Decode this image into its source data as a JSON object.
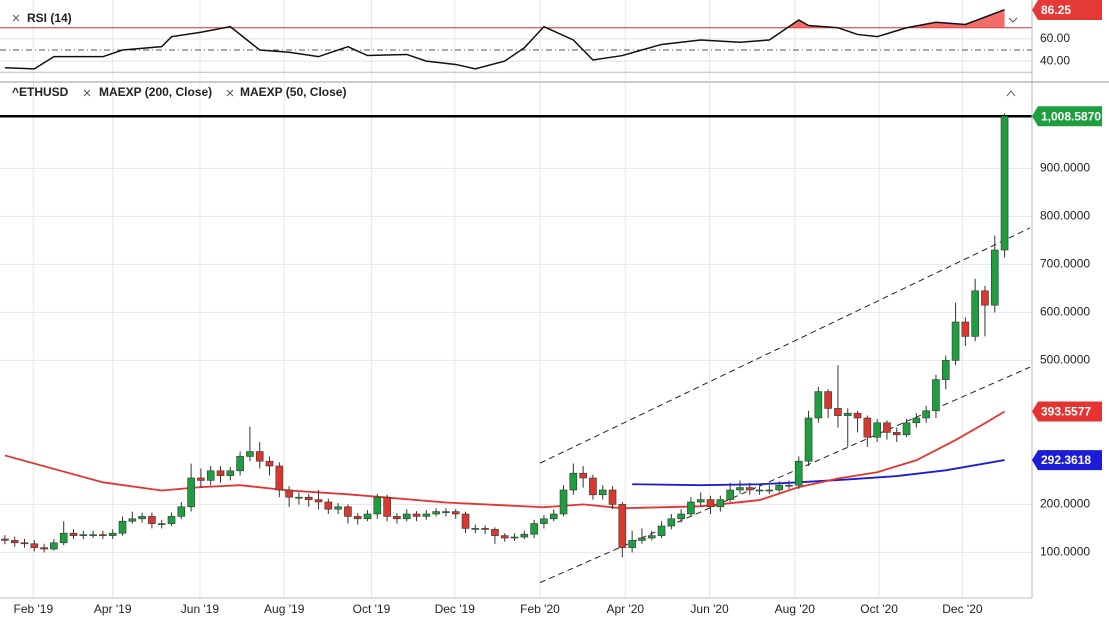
{
  "chart_data": [
    {
      "type": "line",
      "name": "RSI (14)",
      "color": "#111111",
      "label_color": "#e53935",
      "x": [
        0,
        3,
        5,
        10,
        12,
        16,
        17,
        20,
        23,
        26,
        29,
        32,
        35,
        37,
        41,
        43,
        46,
        48,
        51,
        53,
        55,
        58,
        60,
        63,
        67,
        71,
        75,
        78,
        81,
        82,
        85,
        87,
        89,
        92,
        95,
        98,
        102
      ],
      "values": [
        34,
        33,
        44,
        44,
        50,
        53,
        62,
        66,
        71,
        50,
        48,
        44,
        53,
        45,
        46,
        40,
        37,
        33,
        40,
        52,
        71,
        59,
        41,
        45,
        55,
        59,
        57,
        59,
        77,
        72,
        70,
        64,
        62,
        70,
        75,
        73,
        86.25
      ],
      "xlim": [
        -0.5,
        104.8
      ],
      "ylim": [
        23,
        95
      ],
      "yticks": [
        {
          "value": 40,
          "label": "40.00"
        },
        {
          "value": 60,
          "label": "60.00"
        }
      ],
      "levels": [
        {
          "value": 70,
          "color": "#d32f2f",
          "style": "solid",
          "fill_above": "#ef5350"
        },
        {
          "value": 50,
          "color": "#555555",
          "style": "dashdot"
        },
        {
          "value": 30,
          "color": "#bbbbbb",
          "style": "solid"
        }
      ],
      "grid": true
    },
    {
      "type": "candlestick",
      "name": "^ETHUSD",
      "up_color": "#1e9e3e",
      "down_color": "#d9382c",
      "last_close_label": "1,008.5870",
      "price_line": true,
      "open": [
        128,
        125,
        120,
        118,
        110,
        107,
        120,
        140,
        135,
        137,
        137,
        135,
        140,
        165,
        170,
        175,
        160,
        160,
        175,
        195,
        255,
        250,
        270,
        260,
        270,
        300,
        310,
        290,
        280,
        230,
        215,
        215,
        210,
        205,
        190,
        195,
        175,
        170,
        180,
        215,
        175,
        170,
        180,
        175,
        180,
        185,
        185,
        180,
        150,
        150,
        148,
        135,
        130,
        132,
        138,
        160,
        170,
        180,
        230,
        265,
        255,
        220,
        230,
        200,
        110,
        125,
        130,
        135,
        155,
        170,
        180,
        205,
        210,
        195,
        210,
        230,
        235,
        230,
        230,
        230,
        240,
        240,
        290,
        380,
        435,
        400,
        385,
        390,
        380,
        340,
        370,
        350,
        345,
        370,
        380,
        395,
        460,
        500,
        580,
        550,
        645,
        615,
        730
      ],
      "high": [
        136,
        133,
        128,
        126,
        118,
        128,
        165,
        148,
        145,
        145,
        145,
        148,
        175,
        185,
        183,
        183,
        168,
        183,
        205,
        285,
        275,
        280,
        280,
        278,
        310,
        362,
        330,
        300,
        288,
        238,
        225,
        222,
        230,
        212,
        203,
        200,
        182,
        188,
        222,
        220,
        182,
        190,
        186,
        188,
        192,
        192,
        190,
        185,
        158,
        156,
        152,
        140,
        140,
        145,
        168,
        178,
        190,
        240,
        285,
        280,
        262,
        240,
        238,
        205,
        145,
        150,
        145,
        165,
        180,
        190,
        215,
        225,
        218,
        218,
        245,
        250,
        245,
        240,
        240,
        248,
        250,
        300,
        395,
        445,
        440,
        490,
        400,
        395,
        385,
        378,
        375,
        360,
        378,
        390,
        405,
        470,
        510,
        620,
        590,
        670,
        655,
        760,
        1015
      ],
      "low": [
        117,
        112,
        110,
        102,
        100,
        104,
        115,
        128,
        128,
        130,
        128,
        128,
        135,
        160,
        162,
        150,
        150,
        155,
        170,
        185,
        235,
        240,
        245,
        250,
        260,
        290,
        275,
        260,
        215,
        195,
        200,
        195,
        190,
        180,
        180,
        160,
        158,
        165,
        170,
        165,
        160,
        165,
        165,
        168,
        175,
        175,
        170,
        140,
        140,
        138,
        118,
        122,
        124,
        128,
        130,
        150,
        165,
        175,
        220,
        235,
        210,
        210,
        190,
        90,
        100,
        118,
        125,
        130,
        148,
        162,
        175,
        195,
        180,
        185,
        205,
        222,
        220,
        220,
        222,
        225,
        232,
        232,
        280,
        370,
        380,
        360,
        320,
        350,
        320,
        330,
        335,
        330,
        340,
        360,
        370,
        380,
        440,
        490,
        530,
        540,
        550,
        600,
        715
      ],
      "close": [
        125,
        120,
        118,
        110,
        107,
        120,
        140,
        135,
        137,
        137,
        135,
        140,
        165,
        170,
        175,
        160,
        160,
        175,
        195,
        255,
        250,
        270,
        260,
        270,
        300,
        310,
        290,
        280,
        230,
        215,
        215,
        210,
        205,
        190,
        195,
        175,
        170,
        180,
        215,
        175,
        170,
        180,
        175,
        180,
        185,
        185,
        180,
        150,
        150,
        148,
        135,
        130,
        132,
        138,
        160,
        170,
        180,
        230,
        265,
        255,
        220,
        230,
        200,
        110,
        125,
        130,
        135,
        155,
        170,
        180,
        205,
        210,
        195,
        210,
        230,
        235,
        230,
        230,
        230,
        240,
        240,
        290,
        380,
        435,
        400,
        385,
        390,
        380,
        340,
        370,
        350,
        345,
        370,
        380,
        395,
        460,
        500,
        580,
        550,
        645,
        615,
        730,
        1008.587
      ],
      "series": [
        {
          "name": "MAEXP (200, Close)",
          "color": "#1c1cd6",
          "x": [
            64,
            71,
            77,
            81,
            86,
            91,
            96,
            102
          ],
          "values": [
            242,
            240,
            242,
            246,
            252,
            259,
            271,
            292.3618
          ]
        },
        {
          "name": "MAEXP (50, Close)",
          "color": "#e3342f",
          "x": [
            0,
            10,
            16,
            20,
            24,
            29,
            35,
            45,
            55,
            59,
            63,
            71,
            77,
            81,
            85,
            89,
            93,
            97,
            100,
            102
          ],
          "values": [
            302,
            246,
            229,
            236,
            240,
            229,
            221,
            204,
            194,
            200,
            192,
            196,
            209,
            236,
            254,
            267,
            292,
            334,
            369,
            393.5577
          ]
        }
      ],
      "trendlines": [
        {
          "x": [
            54.6,
            104.6
          ],
          "y": [
            286,
            776
          ]
        },
        {
          "x": [
            54.6,
            104.6
          ],
          "y": [
            37,
            486
          ]
        }
      ],
      "xlim": [
        -0.5,
        104.8
      ],
      "ylim": [
        5,
        1080
      ],
      "yticks": [
        {
          "value": 100,
          "label": "100.0000"
        },
        {
          "value": 200,
          "label": "200.0000"
        },
        {
          "value": 500,
          "label": "500.0000"
        },
        {
          "value": 600,
          "label": "600.0000"
        },
        {
          "value": 700,
          "label": "700.0000"
        },
        {
          "value": 800,
          "label": "800.0000"
        },
        {
          "value": 900,
          "label": "900.0000"
        }
      ],
      "xticks": [
        {
          "value": 2.9,
          "label": "Feb '19"
        },
        {
          "value": 11,
          "label": "Apr '19"
        },
        {
          "value": 19.9,
          "label": "Jun '19"
        },
        {
          "value": 28.5,
          "label": "Aug '19"
        },
        {
          "value": 37.4,
          "label": "Oct '19"
        },
        {
          "value": 45.9,
          "label": "Dec '19"
        },
        {
          "value": 54.6,
          "label": "Feb '20"
        },
        {
          "value": 63.3,
          "label": "Apr '20"
        },
        {
          "value": 71.9,
          "label": "Jun '20"
        },
        {
          "value": 80.6,
          "label": "Aug '20"
        },
        {
          "value": 89.2,
          "label": "Oct '20"
        },
        {
          "value": 97.7,
          "label": "Dec '20"
        }
      ],
      "grid": true
    }
  ]
}
